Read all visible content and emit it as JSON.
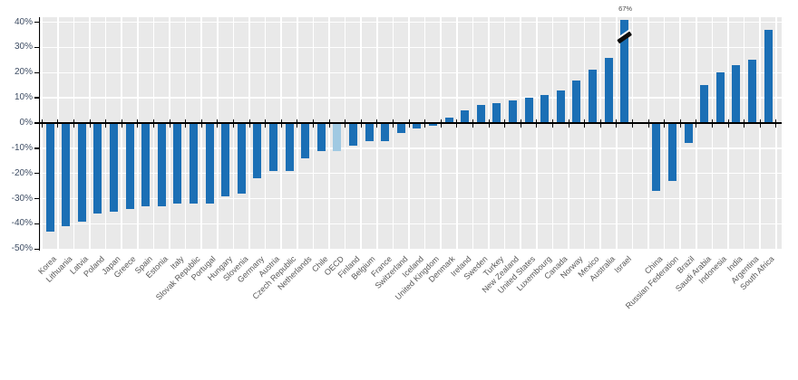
{
  "chart_data": {
    "type": "bar",
    "title": "",
    "unit": "%",
    "ylim": [
      -50,
      42
    ],
    "grid": true,
    "legend": "none",
    "yticks": [
      40,
      30,
      20,
      10,
      0,
      -10,
      -20,
      -30,
      -40,
      -50
    ],
    "ytick_labels": [
      "40%",
      "30%",
      "20%",
      "10%",
      "0%",
      "-10%",
      "-20%",
      "-30%",
      "-40%",
      "-50%"
    ],
    "categories": [
      "Korea",
      "Lithuania",
      "Latvia",
      "Poland",
      "Japan",
      "Greece",
      "Spain",
      "Estonia",
      "Italy",
      "Slovak Republic",
      "Portugal",
      "Hungary",
      "Slovenia",
      "Germany",
      "Austria",
      "Czech Republic",
      "Netherlands",
      "Chile",
      "OECD",
      "Finland",
      "Belgium",
      "France",
      "Switzerland",
      "Iceland",
      "United Kingdom",
      "Denmark",
      "Ireland",
      "Sweden",
      "Turkey",
      "New Zealand",
      "United States",
      "Luxembourg",
      "Canada",
      "Norway",
      "Mexico",
      "Australia",
      "Israel",
      "China",
      "Russian Federation",
      "Brazil",
      "Saudi Arabia",
      "Indonesia",
      "India",
      "Argentina",
      "South Africa"
    ],
    "values": [
      -43,
      -41,
      -39,
      -36,
      -35,
      -34,
      -33,
      -33,
      -32,
      -32,
      -32,
      -29,
      -28,
      -22,
      -19,
      -19,
      -14,
      -11,
      -11,
      -9,
      -7,
      -7,
      -4,
      -2,
      -1,
      2,
      5,
      7,
      8,
      9,
      10,
      11,
      13,
      17,
      21,
      26,
      67,
      -27,
      -23,
      -8,
      15,
      20,
      23,
      25,
      37
    ],
    "highlight_category": "OECD",
    "group_gap_after": "Israel",
    "axis_break": {
      "category": "Israel",
      "true_value": 67,
      "label": "67%",
      "display_top_value": 41,
      "break_mark_value": 34
    },
    "colors": {
      "bar": "#1b6fb5",
      "highlight_bar": "#a0c9e2",
      "plot_background": "#e9e9e9",
      "gridline": "#ffffff",
      "axis": "#000000",
      "y_label": "#3d4c63",
      "x_label": "#575757",
      "annotation": "#4a4a4a"
    }
  }
}
